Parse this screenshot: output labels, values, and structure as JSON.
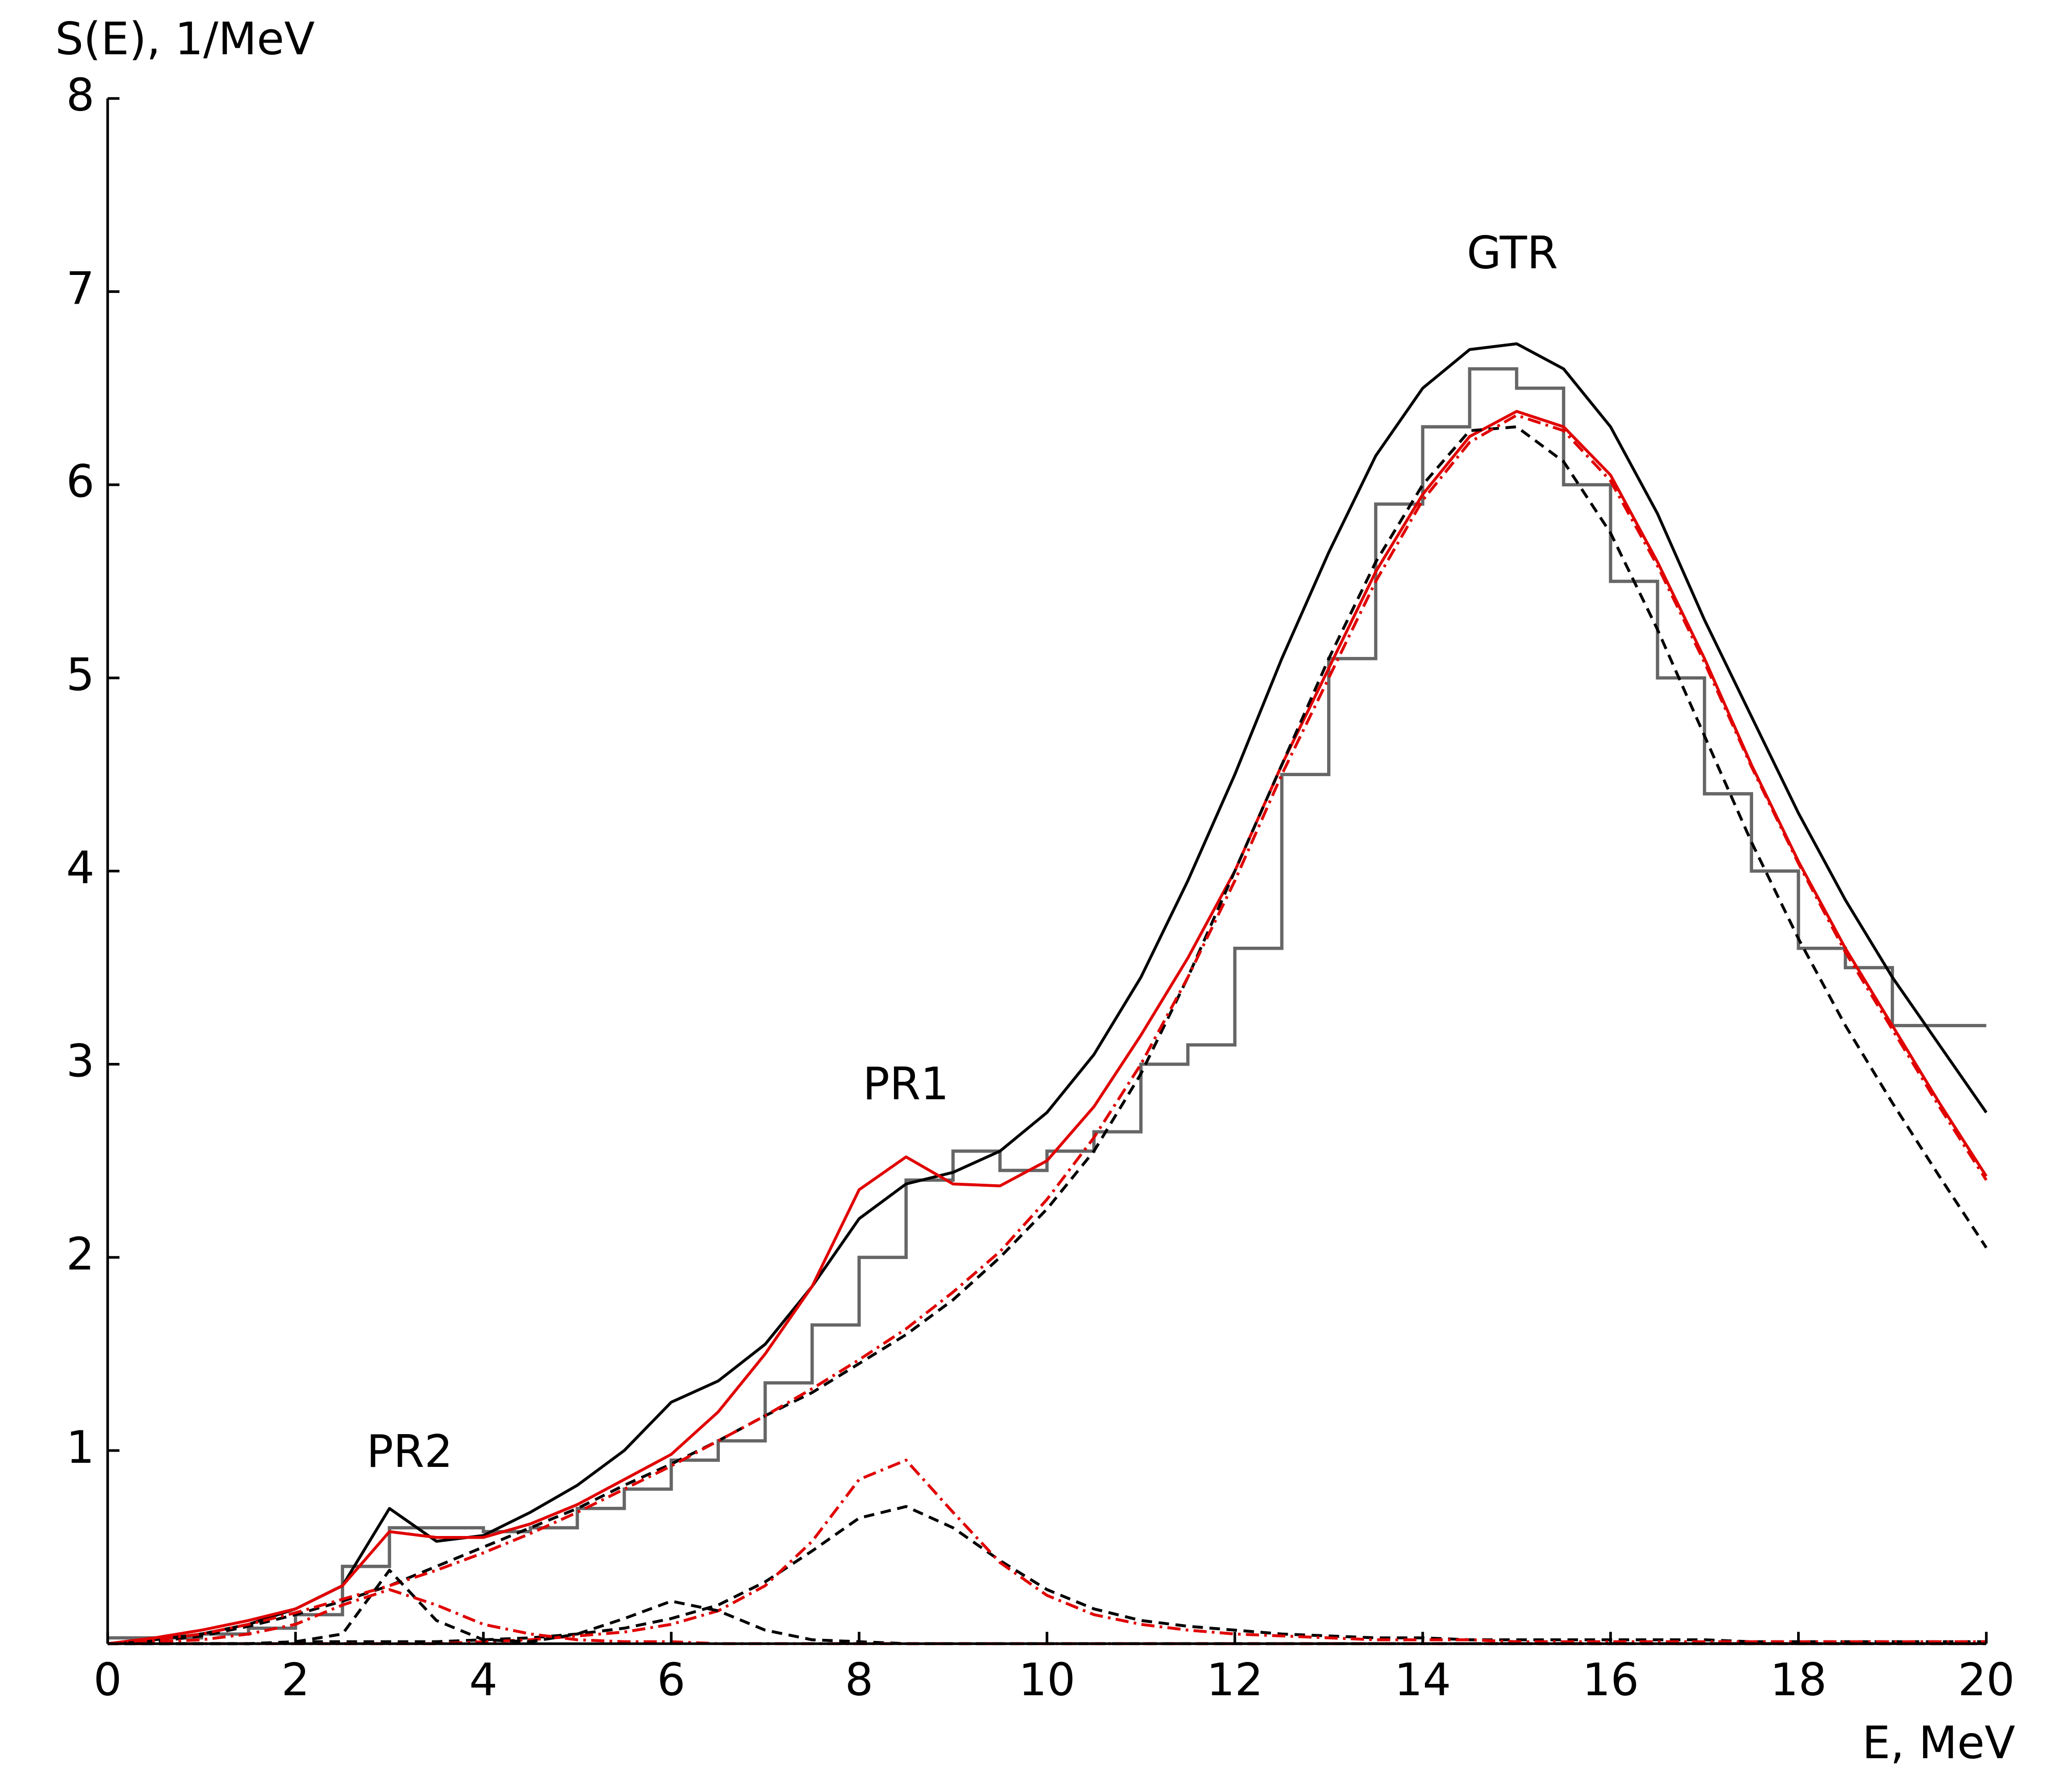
{
  "chart_data": {
    "type": "line",
    "ylabel": "S(E), 1/MeV",
    "xlabel": "E, MeV",
    "annotations": [
      "PR2",
      "PR1",
      "GTR"
    ],
    "xlim": [
      0,
      20
    ],
    "ylim": [
      0,
      8
    ],
    "xticks": [
      0,
      2,
      4,
      6,
      8,
      10,
      12,
      14,
      16,
      18,
      20
    ],
    "yticks": [
      1,
      2,
      3,
      4,
      5,
      6,
      7,
      8
    ],
    "x": [
      0,
      0.5,
      1,
      1.5,
      2,
      2.5,
      3,
      3.5,
      4,
      4.5,
      5,
      5.5,
      6,
      6.5,
      7,
      7.5,
      8,
      8.5,
      9,
      9.5,
      10,
      10.5,
      11,
      11.5,
      12,
      12.5,
      13,
      13.5,
      14,
      14.5,
      15,
      15.5,
      16,
      16.5,
      17,
      17.5,
      18,
      18.5,
      19,
      19.5,
      20
    ],
    "histogram": {
      "color": "#666666",
      "bins": [
        0,
        0.5,
        1,
        1.5,
        2,
        2.5,
        3,
        3.5,
        4,
        4.5,
        5,
        5.5,
        6,
        6.5,
        7,
        7.5,
        8,
        8.5,
        9,
        9.5,
        10,
        10.5,
        11,
        11.5,
        12,
        12.5,
        13,
        13.5,
        14,
        14.5,
        15,
        15.5,
        16,
        16.5,
        17,
        17.5,
        18,
        18.5,
        19,
        19.5,
        20
      ],
      "values": [
        0.03,
        0.03,
        0.05,
        0.08,
        0.15,
        0.4,
        0.6,
        0.6,
        0.58,
        0.6,
        0.7,
        0.8,
        0.95,
        1.05,
        1.35,
        1.65,
        2.0,
        2.4,
        2.55,
        2.45,
        2.55,
        2.65,
        3.0,
        3.1,
        3.6,
        4.5,
        5.1,
        5.9,
        6.3,
        6.6,
        6.5,
        6.0,
        5.5,
        5.0,
        4.4,
        4.0,
        3.6,
        3.5,
        3.2,
        3.2
      ]
    },
    "series": [
      {
        "color": "#000000",
        "dash": "solid",
        "values": [
          0,
          0.02,
          0.05,
          0.1,
          0.18,
          0.3,
          0.7,
          0.53,
          0.56,
          0.68,
          0.82,
          1.0,
          1.25,
          1.36,
          1.55,
          1.85,
          2.2,
          2.38,
          2.44,
          2.55,
          2.75,
          3.05,
          3.45,
          3.95,
          4.5,
          5.1,
          5.65,
          6.15,
          6.5,
          6.7,
          6.73,
          6.6,
          6.3,
          5.85,
          5.3,
          4.8,
          4.3,
          3.85,
          3.45,
          3.1,
          2.75
        ]
      },
      {
        "color": "#e00000",
        "dash": "solid",
        "values": [
          0,
          0.03,
          0.07,
          0.12,
          0.18,
          0.3,
          0.58,
          0.55,
          0.55,
          0.62,
          0.72,
          0.85,
          0.98,
          1.2,
          1.5,
          1.85,
          2.35,
          2.52,
          2.38,
          2.37,
          2.5,
          2.78,
          3.15,
          3.55,
          4.0,
          4.55,
          5.05,
          5.55,
          5.95,
          6.25,
          6.38,
          6.3,
          6.05,
          5.6,
          5.1,
          4.55,
          4.05,
          3.6,
          3.2,
          2.8,
          2.42
        ]
      },
      {
        "color": "#000000",
        "dash": "dashed",
        "values": [
          0,
          0.01,
          0.04,
          0.09,
          0.15,
          0.22,
          0.3,
          0.4,
          0.5,
          0.6,
          0.7,
          0.82,
          0.93,
          1.05,
          1.18,
          1.3,
          1.45,
          1.6,
          1.78,
          2.0,
          2.25,
          2.55,
          2.95,
          3.45,
          4.0,
          4.55,
          5.1,
          5.6,
          6.0,
          6.28,
          6.3,
          6.12,
          5.75,
          5.25,
          4.7,
          4.15,
          3.65,
          3.2,
          2.8,
          2.42,
          2.05
        ]
      },
      {
        "color": "#e00000",
        "dash": "dashdot",
        "values": [
          0,
          0.02,
          0.05,
          0.1,
          0.16,
          0.23,
          0.3,
          0.38,
          0.47,
          0.57,
          0.68,
          0.8,
          0.92,
          1.05,
          1.18,
          1.32,
          1.47,
          1.63,
          1.82,
          2.03,
          2.3,
          2.62,
          3.0,
          3.45,
          3.95,
          4.5,
          5.0,
          5.5,
          5.92,
          6.22,
          6.36,
          6.28,
          6.02,
          5.58,
          5.08,
          4.54,
          4.04,
          3.58,
          3.18,
          2.78,
          2.4
        ]
      },
      {
        "color": "#000000",
        "dash": "dashed",
        "values": [
          0,
          0,
          0,
          0,
          0.01,
          0.01,
          0.01,
          0.01,
          0.02,
          0.03,
          0.05,
          0.08,
          0.13,
          0.2,
          0.32,
          0.48,
          0.65,
          0.71,
          0.6,
          0.43,
          0.28,
          0.18,
          0.12,
          0.09,
          0.07,
          0.05,
          0.04,
          0.03,
          0.03,
          0.02,
          0.02,
          0.02,
          0.02,
          0.02,
          0.02,
          0.01,
          0.01,
          0.01,
          0.01,
          0.01,
          0.01
        ]
      },
      {
        "color": "#e00000",
        "dash": "dashdot",
        "values": [
          0,
          0,
          0,
          0,
          0,
          0,
          0,
          0,
          0.01,
          0.02,
          0.04,
          0.06,
          0.1,
          0.17,
          0.3,
          0.53,
          0.85,
          0.95,
          0.68,
          0.42,
          0.25,
          0.15,
          0.1,
          0.07,
          0.05,
          0.04,
          0.03,
          0.02,
          0.02,
          0.02,
          0.01,
          0.01,
          0.01,
          0.01,
          0.01,
          0.01,
          0.01,
          0.01,
          0.01,
          0.01,
          0.01
        ]
      },
      {
        "color": "#000000",
        "dash": "dashed",
        "values": [
          0,
          0,
          0,
          0,
          0.01,
          0.05,
          0.38,
          0.12,
          0.02,
          0.01,
          0.05,
          0.13,
          0.22,
          0.17,
          0.07,
          0.02,
          0.01,
          0,
          0,
          0,
          0,
          0,
          0,
          0,
          0,
          0,
          0,
          0,
          0,
          0,
          0,
          0,
          0,
          0,
          0,
          0,
          0,
          0,
          0,
          0,
          0
        ]
      },
      {
        "color": "#e00000",
        "dash": "dashdot",
        "values": [
          0,
          0.01,
          0.02,
          0.05,
          0.1,
          0.2,
          0.28,
          0.2,
          0.1,
          0.05,
          0.02,
          0.01,
          0.01,
          0,
          0,
          0,
          0,
          0,
          0,
          0,
          0,
          0,
          0,
          0,
          0,
          0,
          0,
          0,
          0,
          0,
          0,
          0,
          0,
          0,
          0,
          0,
          0,
          0,
          0,
          0,
          0
        ]
      }
    ]
  }
}
